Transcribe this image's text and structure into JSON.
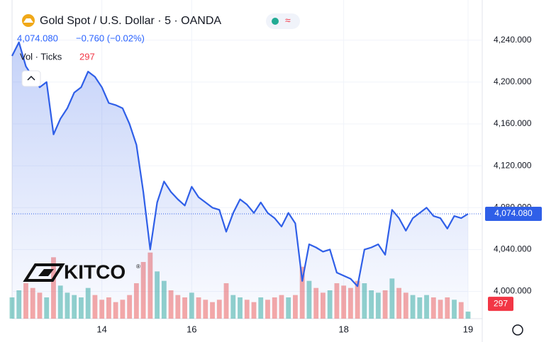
{
  "chart_data": {
    "type": "line",
    "title": "Gold Spot / U.S. Dollar · 5 · OANDA",
    "last": "4,074.080",
    "change": "−0.760 (−0.02%)",
    "logo": "KITCO",
    "logo_mark": "®",
    "categories": [
      null,
      null,
      null,
      null,
      null,
      null,
      null,
      null,
      null,
      null,
      null,
      null,
      null,
      "14",
      null,
      null,
      null,
      null,
      null,
      null,
      null,
      null,
      null,
      null,
      null,
      null,
      "16",
      null,
      null,
      null,
      null,
      null,
      null,
      null,
      null,
      null,
      null,
      null,
      null,
      null,
      null,
      null,
      null,
      null,
      null,
      null,
      null,
      null,
      "18",
      null,
      null,
      null,
      null,
      null,
      null,
      null,
      null,
      null,
      null,
      null,
      null,
      null,
      null,
      null,
      null,
      null,
      "19"
    ],
    "series": [
      {
        "color": "#2f5fe8",
        "values": [
          4225,
          4238,
          4215,
          4205,
          4195,
          4200,
          4150,
          4165,
          4175,
          4190,
          4195,
          4210,
          4205,
          4195,
          4180,
          4178,
          4175,
          4160,
          4140,
          4095,
          4040,
          4085,
          4105,
          4095,
          4088,
          4082,
          4100,
          4090,
          4085,
          4080,
          4078,
          4057,
          4075,
          4088,
          4083,
          4075,
          4085,
          4075,
          4070,
          4062,
          4075,
          4065,
          4010,
          4045,
          4042,
          4038,
          4040,
          4018,
          4015,
          4012,
          4005,
          4040,
          4042,
          4045,
          4035,
          4078,
          4070,
          4058,
          4070,
          4075,
          4080,
          4072,
          4070,
          4060,
          4072,
          4070,
          4074.08
        ]
      }
    ],
    "last_label": "4,074.080",
    "volume": {
      "name": "Vol · Ticks",
      "axis": "y2",
      "up_color": "#26a69a",
      "down_color": "#ef5350",
      "last_label": "297",
      "values": [
        900,
        1200,
        1500,
        1300,
        1100,
        900,
        2600,
        1400,
        1100,
        1000,
        900,
        1300,
        1000,
        800,
        900,
        700,
        800,
        1000,
        1500,
        2400,
        2800,
        2000,
        1600,
        1200,
        1000,
        900,
        1100,
        900,
        800,
        700,
        800,
        1500,
        1000,
        900,
        800,
        700,
        900,
        800,
        900,
        1000,
        900,
        1000,
        2200,
        1600,
        1300,
        1100,
        1200,
        1500,
        1400,
        1300,
        1600,
        1500,
        1200,
        1100,
        1200,
        1700,
        1300,
        1100,
        1000,
        900,
        1000,
        900,
        800,
        900,
        800,
        700,
        297
      ]
    },
    "y2lim": [
      0,
      3000
    ],
    "ylim": [
      3974,
      4273
    ],
    "yticks": [
      {
        "value": 4000,
        "label": "4,000.000"
      },
      {
        "value": 4040,
        "label": "4,040.000"
      },
      {
        "value": 4080,
        "label": "4,080.000"
      },
      {
        "value": 4120,
        "label": "4,120.000"
      },
      {
        "value": 4160,
        "label": "4,160.000"
      },
      {
        "value": 4200,
        "label": "4,200.000"
      },
      {
        "value": 4240,
        "label": "4,240.000"
      }
    ],
    "grid": true
  }
}
